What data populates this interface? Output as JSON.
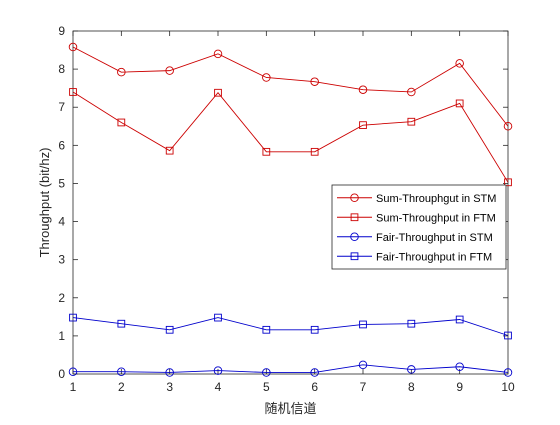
{
  "chart_data": {
    "type": "line",
    "xlabel": "随机信道",
    "ylabel": "Throughput (bit/hz)",
    "xlim": [
      1,
      10
    ],
    "ylim": [
      0,
      9
    ],
    "x": [
      1,
      2,
      3,
      4,
      5,
      6,
      7,
      8,
      9,
      10
    ],
    "xticks": [
      "1",
      "2",
      "3",
      "4",
      "5",
      "6",
      "7",
      "8",
      "9",
      "10"
    ],
    "yticks": [
      "0",
      "1",
      "2",
      "3",
      "4",
      "5",
      "6",
      "7",
      "8",
      "9"
    ],
    "grid": false,
    "legend_position": "center-right",
    "series": [
      {
        "name": "Sum-Throuphgut in STM",
        "color": "#cc0000",
        "marker": "circle",
        "values": [
          8.58,
          7.92,
          7.96,
          8.4,
          7.78,
          7.67,
          7.46,
          7.4,
          8.15,
          6.5
        ]
      },
      {
        "name": "Sum-Throughput in FTM",
        "color": "#cc0000",
        "marker": "square",
        "values": [
          7.4,
          6.6,
          5.86,
          7.38,
          5.83,
          5.83,
          6.53,
          6.62,
          7.1,
          5.03
        ]
      },
      {
        "name": "Fair-Throughput in STM",
        "color": "#0000cc",
        "marker": "circle",
        "values": [
          0.06,
          0.06,
          0.04,
          0.09,
          0.04,
          0.04,
          0.24,
          0.12,
          0.19,
          0.04
        ]
      },
      {
        "name": "Fair-Throughput in FTM",
        "color": "#0000cc",
        "marker": "square",
        "values": [
          1.48,
          1.32,
          1.16,
          1.48,
          1.16,
          1.16,
          1.3,
          1.32,
          1.43,
          1.01
        ]
      }
    ]
  }
}
